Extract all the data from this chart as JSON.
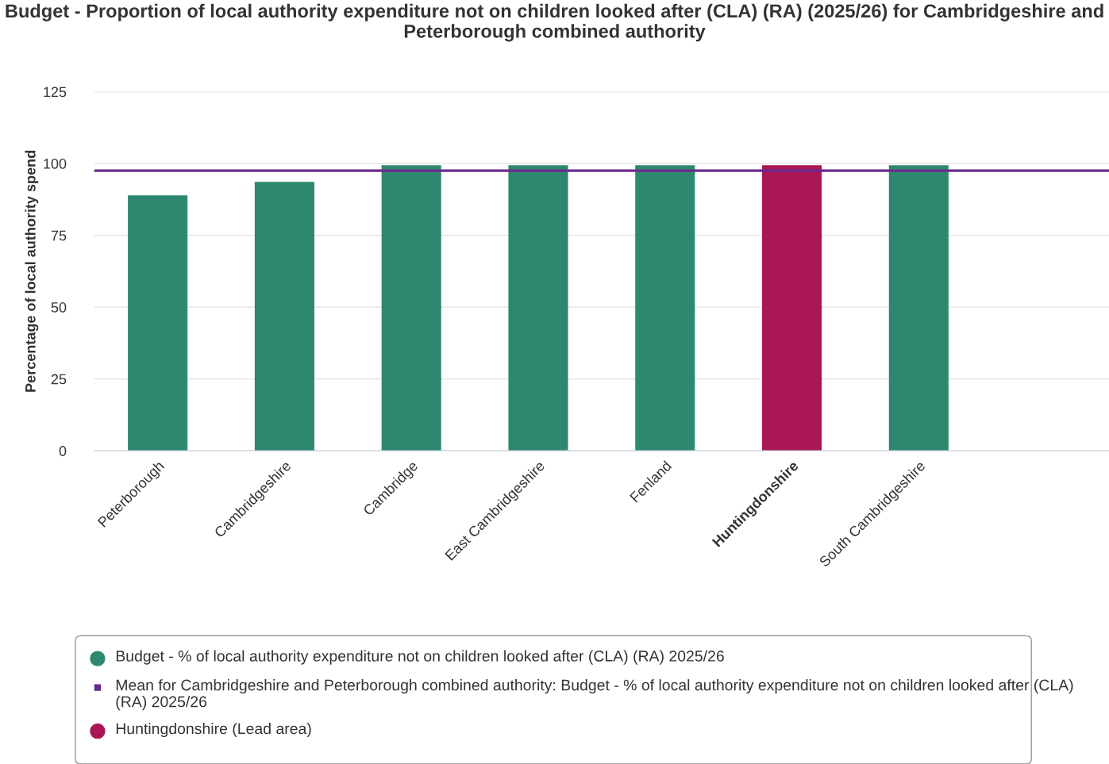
{
  "chart_data": {
    "type": "bar",
    "title": "Budget - Proportion of local authority expenditure not on children looked after (CLA) (RA) (2025/26) for Cambridgeshire and Peterborough combined authority",
    "ylabel": "Percentage of local authority spend",
    "categories": [
      "Peterborough",
      "Cambridgeshire",
      "Cambridge",
      "East Cambridgeshire",
      "Fenland",
      "Huntingdonshire",
      "South Cambridgeshire"
    ],
    "series": [
      {
        "name": "Budget - % of local authority expenditure not on children looked after (CLA) (RA) 2025/26",
        "color": "#2e8870",
        "values": [
          88.9,
          93.6,
          99.4,
          99.4,
          99.4,
          null,
          99.4
        ]
      },
      {
        "name": "Huntingdonshire (Lead area)",
        "color": "#a91755",
        "values": [
          null,
          null,
          null,
          null,
          null,
          99.4,
          null
        ]
      }
    ],
    "ref_lines": [
      {
        "axis": "y",
        "value": 97.5,
        "label": "Mean for Cambridgeshire and Peterborough combined authority: Budget - % of local authority expenditure not on children looked after (CLA) (RA) 2025/26",
        "color": "#6a2a8c"
      }
    ],
    "ylim": [
      0,
      125
    ],
    "yticks": [
      0,
      25,
      50,
      75,
      100,
      125
    ],
    "grid": "y",
    "legend": "bottom"
  }
}
